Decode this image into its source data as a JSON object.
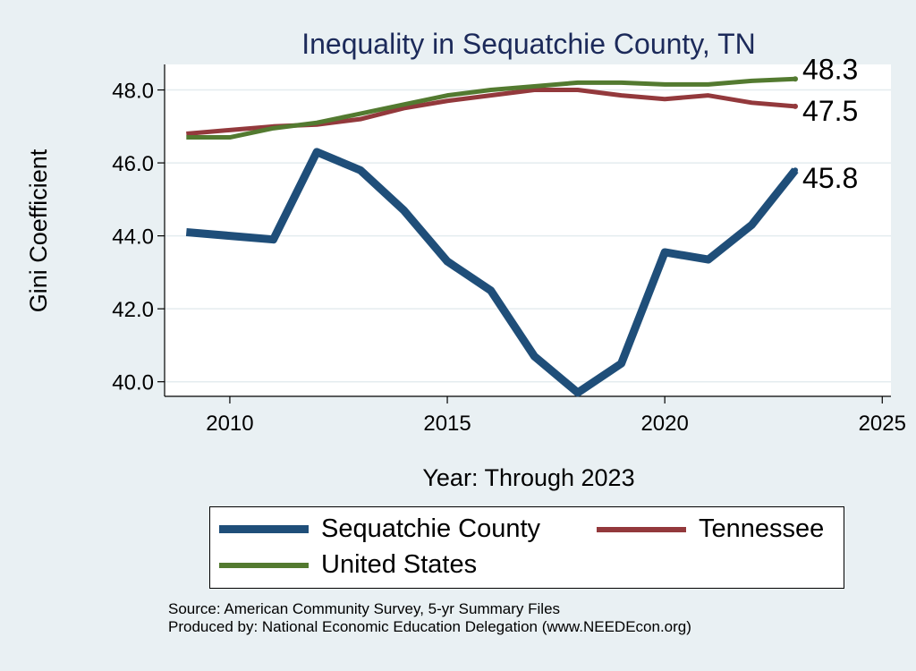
{
  "chart_data": {
    "type": "line",
    "title": "Inequality in Sequatchie County, TN",
    "xlabel": "Year: Through 2023",
    "ylabel": "Gini Coefficient",
    "xlim": [
      2008.5,
      2025.2
    ],
    "ylim": [
      39.6,
      48.7
    ],
    "xticks": [
      2010,
      2015,
      2020,
      2025
    ],
    "yticks": [
      40.0,
      42.0,
      44.0,
      46.0,
      48.0
    ],
    "ytick_labels": [
      "40.0",
      "42.0",
      "44.0",
      "46.0",
      "48.0"
    ],
    "grid": true,
    "x": [
      2009,
      2010,
      2011,
      2012,
      2013,
      2014,
      2015,
      2016,
      2017,
      2018,
      2019,
      2020,
      2021,
      2022,
      2023
    ],
    "series": [
      {
        "name": "Sequatchie County",
        "color": "#1f4e79",
        "values": [
          44.1,
          44.0,
          43.9,
          46.3,
          45.8,
          44.7,
          43.3,
          42.5,
          40.7,
          39.7,
          40.5,
          43.55,
          43.35,
          44.3,
          45.8
        ],
        "end_label": "45.8"
      },
      {
        "name": "Tennessee",
        "color": "#93393c",
        "values": [
          46.8,
          46.9,
          47.0,
          47.05,
          47.2,
          47.5,
          47.7,
          47.85,
          48.0,
          48.0,
          47.85,
          47.75,
          47.85,
          47.65,
          47.55
        ],
        "end_label": "47.5"
      },
      {
        "name": "United States",
        "color": "#537a30",
        "values": [
          46.7,
          46.7,
          46.95,
          47.1,
          47.35,
          47.6,
          47.85,
          48.0,
          48.1,
          48.2,
          48.2,
          48.15,
          48.15,
          48.25,
          48.3
        ],
        "end_label": "48.3"
      }
    ],
    "legend": {
      "placement": "bottom",
      "items": [
        "Sequatchie County",
        "Tennessee",
        "United States"
      ]
    },
    "notes": [
      "Source: American Community Survey, 5-yr Summary Files",
      "Produced by: National Economic Education Delegation (www.NEEDEcon.org)"
    ]
  }
}
